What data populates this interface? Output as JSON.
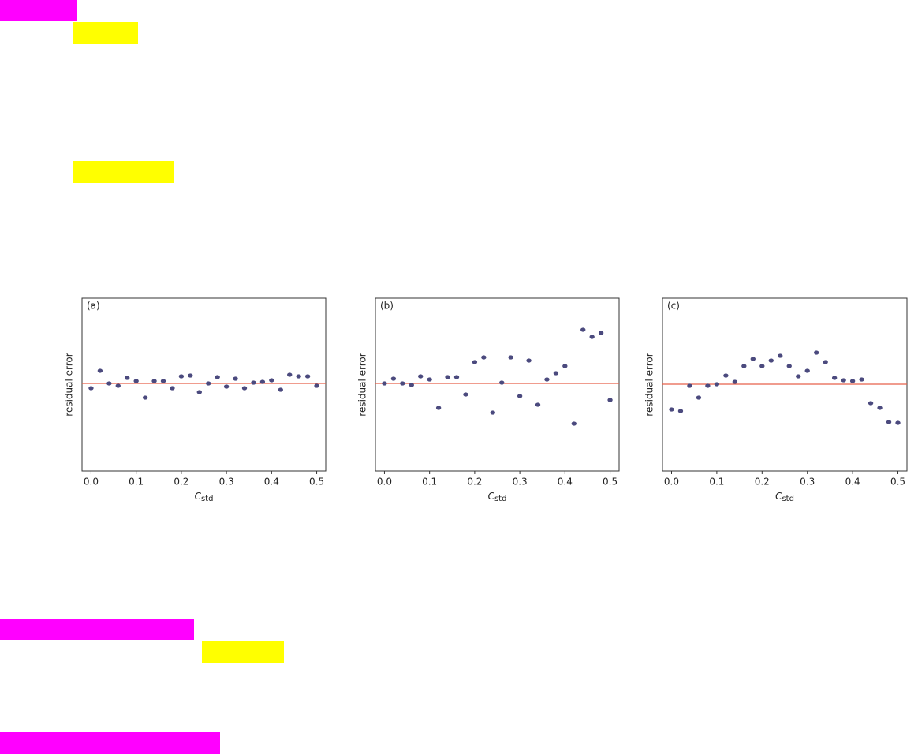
{
  "chart_data": [
    {
      "type": "scatter",
      "label": "(a)",
      "ylabel": "residual error",
      "xlabel": "C",
      "xlabel_sub": "std",
      "x": [
        0,
        0.02,
        0.04,
        0.06,
        0.08,
        0.1,
        0.12,
        0.14,
        0.16,
        0.18,
        0.2,
        0.22,
        0.24,
        0.26,
        0.28,
        0.3,
        0.32,
        0.34,
        0.36,
        0.38,
        0.4,
        0.42,
        0.44,
        0.46,
        0.48,
        0.5
      ],
      "values": [
        -0.06,
        0.16,
        0,
        -0.03,
        0.07,
        0.03,
        -0.18,
        0.03,
        0.03,
        -0.06,
        0.09,
        0.1,
        -0.11,
        0,
        0.08,
        -0.04,
        0.06,
        -0.06,
        0.01,
        0.02,
        0.04,
        -0.08,
        0.11,
        0.09,
        0.09,
        -0.03
      ],
      "color": "#4b4a7e",
      "hline": 0,
      "hline_color": "#e8604a",
      "xlim": [
        -0.02,
        0.52
      ],
      "xticks": [
        {
          "value": 0,
          "label": "0.0"
        },
        0.1,
        0.2,
        0.3,
        0.4,
        0.5
      ],
      "ylim": [
        -1.11,
        1.08
      ]
    },
    {
      "type": "scatter",
      "label": "(b)",
      "ylabel": "residual error",
      "xlabel": "C",
      "xlabel_sub": "std",
      "x": [
        0,
        0.02,
        0.04,
        0.06,
        0.08,
        0.1,
        0.12,
        0.14,
        0.16,
        0.18,
        0.2,
        0.22,
        0.24,
        0.26,
        0.28,
        0.3,
        0.32,
        0.34,
        0.36,
        0.38,
        0.4,
        0.42,
        0.44,
        0.46,
        0.48,
        0.5
      ],
      "values": [
        0,
        0.06,
        0,
        -0.02,
        0.09,
        0.05,
        -0.31,
        0.08,
        0.08,
        -0.14,
        0.27,
        0.33,
        -0.37,
        0.01,
        0.33,
        -0.16,
        0.29,
        -0.27,
        0.05,
        0.13,
        0.22,
        -0.51,
        0.68,
        0.59,
        0.64,
        -0.21
      ],
      "color": "#4b4a7e",
      "hline": 0,
      "hline_color": "#e8604a",
      "xlim": [
        -0.02,
        0.52
      ],
      "xticks": [
        {
          "value": 0,
          "label": "0.0"
        },
        0.1,
        0.2,
        0.3,
        0.4,
        0.5
      ],
      "ylim": [
        -1.11,
        1.08
      ]
    },
    {
      "type": "scatter",
      "label": "(c)",
      "ylabel": "residual error",
      "xlabel": "C",
      "xlabel_sub": "std",
      "x": [
        0,
        0.02,
        0.04,
        0.06,
        0.08,
        0.1,
        0.12,
        0.14,
        0.16,
        0.18,
        0.2,
        0.22,
        0.24,
        0.26,
        0.28,
        0.3,
        0.32,
        0.34,
        0.36,
        0.38,
        0.4,
        0.42,
        0.44,
        0.46,
        0.48,
        0.5
      ],
      "values": [
        -0.32,
        -0.34,
        -0.02,
        -0.17,
        -0.02,
        0,
        0.11,
        0.03,
        0.23,
        0.32,
        0.23,
        0.3,
        0.36,
        0.23,
        0.1,
        0.17,
        0.4,
        0.28,
        0.08,
        0.05,
        0.04,
        0.06,
        -0.24,
        -0.3,
        -0.48,
        -0.49
      ],
      "color": "#4b4a7e",
      "hline": 0,
      "hline_color": "#e8604a",
      "xlim": [
        -0.02,
        0.52
      ],
      "xticks": [
        {
          "value": 0,
          "label": "0.0"
        },
        0.1,
        0.2,
        0.3,
        0.4,
        0.5
      ],
      "ylim": [
        -1.1,
        1.09
      ]
    }
  ]
}
